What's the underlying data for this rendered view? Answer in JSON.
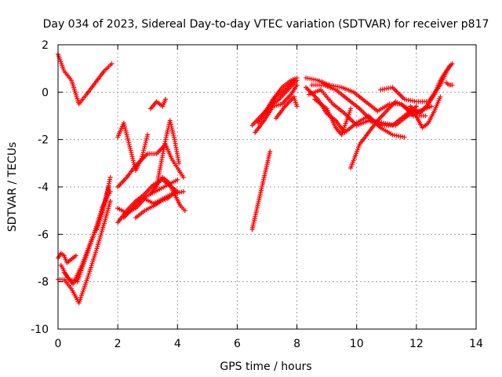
{
  "chart_data": {
    "type": "scatter",
    "title": "Day 034 of 2023, Sidereal Day-to-day VTEC variation (SDTVAR) for receiver p817",
    "xlabel": "GPS time / hours",
    "ylabel": "SDTVAR / TECUs",
    "xlim": [
      0,
      14
    ],
    "ylim": [
      -10,
      2
    ],
    "xticks": [
      0,
      2,
      4,
      6,
      8,
      10,
      12,
      14
    ],
    "yticks": [
      -10,
      -8,
      -6,
      -4,
      -2,
      0,
      2
    ],
    "grid": true,
    "legend": "none",
    "marker": "+",
    "color": "#ff0000",
    "series": [
      {
        "x": [
          0.0,
          0.2,
          0.45,
          0.7,
          0.95,
          1.25,
          1.55,
          1.8
        ],
        "y": [
          1.6,
          0.9,
          0.5,
          -0.5,
          -0.1,
          0.4,
          0.9,
          1.2
        ]
      },
      {
        "x": [
          0.0,
          0.1,
          0.2,
          0.3,
          0.4,
          0.5,
          0.6
        ],
        "y": [
          -7.0,
          -6.8,
          -6.9,
          -7.2,
          -7.1,
          -7.0,
          -6.9
        ]
      },
      {
        "x": [
          0.0,
          0.2,
          0.45,
          0.7,
          1.0,
          1.3,
          1.6,
          1.75
        ],
        "y": [
          -7.9,
          -7.9,
          -8.3,
          -8.9,
          -7.8,
          -6.6,
          -5.3,
          -4.6
        ]
      },
      {
        "x": [
          0.1,
          0.35,
          0.65,
          0.95,
          1.2,
          1.5,
          1.75
        ],
        "y": [
          -7.3,
          -7.9,
          -8.0,
          -6.9,
          -6.0,
          -4.8,
          -4.2
        ]
      },
      {
        "x": [
          0.2,
          0.5,
          0.8,
          1.1,
          1.4,
          1.7
        ],
        "y": [
          -7.6,
          -8.1,
          -7.3,
          -6.3,
          -5.4,
          -4.0
        ]
      },
      {
        "x": [
          1.3,
          1.5,
          1.65,
          1.75
        ],
        "y": [
          -5.8,
          -5.0,
          -4.2,
          -3.6
        ]
      },
      {
        "x": [
          2.0,
          2.2,
          2.4,
          2.6,
          2.8,
          3.0
        ],
        "y": [
          -1.9,
          -1.3,
          -2.3,
          -3.3,
          -2.8,
          -1.8
        ]
      },
      {
        "x": [
          2.0,
          2.3,
          2.6,
          2.9,
          3.2,
          3.5,
          3.8,
          4.2
        ],
        "y": [
          -4.9,
          -5.1,
          -4.9,
          -4.5,
          -4.7,
          -4.5,
          -4.3,
          -4.2
        ]
      },
      {
        "x": [
          2.0,
          2.3,
          2.6,
          2.9,
          3.2,
          3.5,
          3.7,
          4.0
        ],
        "y": [
          -5.5,
          -5.0,
          -4.6,
          -4.3,
          -3.9,
          -3.7,
          -3.9,
          -4.2
        ]
      },
      {
        "x": [
          2.0,
          2.3,
          2.6,
          3.0,
          3.3,
          3.6,
          3.8,
          4.2
        ],
        "y": [
          -4.0,
          -3.6,
          -3.1,
          -2.6,
          -2.6,
          -2.2,
          -2.8,
          -3.6
        ]
      },
      {
        "x": [
          2.2,
          2.5,
          2.8,
          3.1,
          3.4,
          3.7,
          4.0
        ],
        "y": [
          -5.3,
          -4.9,
          -4.5,
          -4.3,
          -4.1,
          -3.9,
          -3.7
        ]
      },
      {
        "x": [
          2.6,
          2.9,
          3.2,
          3.45,
          3.65,
          3.85
        ],
        "y": [
          -5.3,
          -5.0,
          -4.8,
          -4.6,
          -4.5,
          -4.3
        ]
      },
      {
        "x": [
          3.1,
          3.3,
          3.5,
          3.6
        ],
        "y": [
          -0.7,
          -0.4,
          -0.6,
          -0.3
        ]
      },
      {
        "x": [
          3.1,
          3.3,
          3.5,
          3.7,
          3.9,
          4.1,
          4.25
        ],
        "y": [
          -4.3,
          -3.9,
          -3.6,
          -3.8,
          -4.3,
          -4.8,
          -5.0
        ]
      },
      {
        "x": [
          3.3,
          3.45,
          3.6,
          3.75,
          3.9,
          4.05
        ],
        "y": [
          -4.0,
          -3.0,
          -2.0,
          -1.2,
          -2.0,
          -3.0
        ]
      },
      {
        "x": [
          6.5,
          6.8,
          7.1,
          7.4,
          7.7,
          8.0
        ],
        "y": [
          -1.4,
          -1.0,
          -0.6,
          -0.3,
          0.1,
          0.5
        ]
      },
      {
        "x": [
          6.5,
          6.7,
          6.9,
          7.1
        ],
        "y": [
          -5.8,
          -4.7,
          -3.6,
          -2.5
        ]
      },
      {
        "x": [
          6.6,
          6.9,
          7.2,
          7.5,
          7.8,
          8.0
        ],
        "y": [
          -1.7,
          -1.2,
          -0.6,
          -0.5,
          -0.1,
          0.3
        ]
      },
      {
        "x": [
          6.7,
          7.0,
          7.3,
          7.6,
          7.9
        ],
        "y": [
          -1.3,
          -0.8,
          -0.2,
          0.1,
          0.5
        ]
      },
      {
        "x": [
          6.9,
          7.2,
          7.5,
          7.8,
          8.0
        ],
        "y": [
          -0.9,
          -0.3,
          0.2,
          0.5,
          0.6
        ]
      },
      {
        "x": [
          7.3,
          7.6,
          7.9,
          8.0
        ],
        "y": [
          -1.1,
          -0.6,
          -0.2,
          -0.6
        ]
      },
      {
        "x": [
          8.3,
          8.7,
          9.1,
          9.5,
          9.9,
          10.3,
          10.7,
          11.1,
          11.5,
          11.9,
          12.3
        ],
        "y": [
          0.6,
          0.5,
          0.3,
          0.2,
          0.0,
          -0.4,
          -0.8,
          -0.5,
          -0.5,
          -1.0,
          -1.0
        ]
      },
      {
        "x": [
          8.3,
          8.7,
          9.0,
          9.3,
          9.6,
          10.0,
          10.4,
          10.8,
          11.2,
          11.6
        ],
        "y": [
          0.2,
          -0.3,
          -0.9,
          -1.2,
          -1.7,
          -1.3,
          -1.0,
          -1.5,
          -1.8,
          -1.9
        ]
      },
      {
        "x": [
          8.4,
          8.8,
          9.2,
          9.6,
          10.0,
          10.4,
          10.8,
          11.2,
          11.6,
          12.0
        ],
        "y": [
          -0.1,
          0.1,
          -0.5,
          -0.9,
          -1.4,
          -1.2,
          -1.4,
          -1.4,
          -1.0,
          -0.6
        ]
      },
      {
        "x": [
          8.5,
          8.9,
          9.3,
          9.7,
          10.1,
          10.5,
          10.9,
          11.3,
          11.7,
          12.1,
          12.5
        ],
        "y": [
          0.3,
          0.3,
          0.1,
          -0.3,
          -0.7,
          -1.2,
          -1.3,
          -1.4,
          -1.0,
          -0.8,
          -0.6
        ]
      },
      {
        "x": [
          8.6,
          9.0,
          9.3,
          9.5,
          9.8
        ],
        "y": [
          -0.3,
          -0.7,
          -1.5,
          -1.8,
          -0.7
        ]
      },
      {
        "x": [
          9.8,
          10.1,
          10.4,
          10.7,
          11.0,
          11.3,
          11.6,
          11.9,
          12.2
        ],
        "y": [
          -3.2,
          -2.2,
          -1.7,
          -1.2,
          -0.8,
          -0.4,
          -0.6,
          -0.8,
          -0.8
        ]
      },
      {
        "x": [
          10.8,
          11.2,
          11.6,
          12.0,
          12.4,
          12.8,
          13.1
        ],
        "y": [
          0.1,
          0.2,
          -0.3,
          -0.4,
          -0.4,
          0.3,
          1.1
        ]
      },
      {
        "x": [
          11.6,
          11.9,
          12.2,
          12.4,
          12.6,
          12.8
        ],
        "y": [
          -1.1,
          -0.8,
          -1.5,
          -1.3,
          -0.8,
          -0.2
        ]
      },
      {
        "x": [
          11.8,
          12.1,
          12.4,
          12.6,
          12.8,
          13.0,
          13.2
        ],
        "y": [
          -0.6,
          -0.9,
          -0.5,
          -0.1,
          0.5,
          0.9,
          1.2
        ]
      },
      {
        "x": [
          13.0,
          13.1,
          13.2
        ],
        "y": [
          0.4,
          0.3,
          0.3
        ]
      }
    ]
  }
}
